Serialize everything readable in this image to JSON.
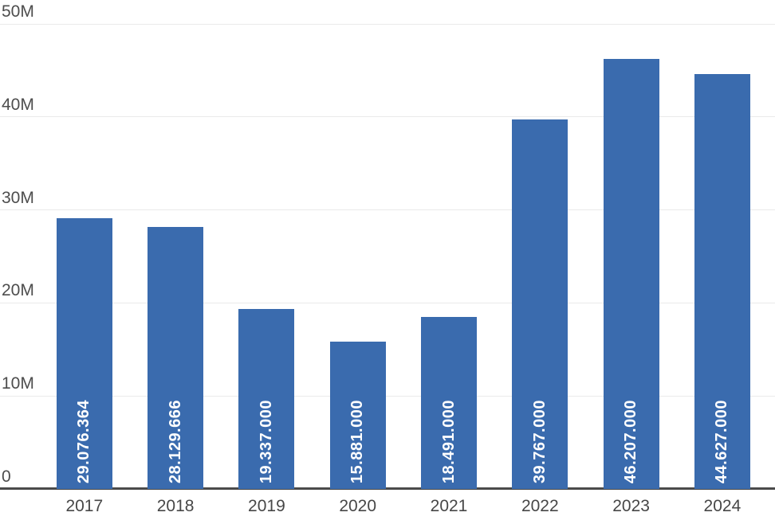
{
  "chart_data": {
    "type": "bar",
    "categories": [
      "2017",
      "2018",
      "2019",
      "2020",
      "2021",
      "2022",
      "2023",
      "2024"
    ],
    "values": [
      29076364,
      28129666,
      19337000,
      15881000,
      18491000,
      39767000,
      46207000,
      44627000
    ],
    "value_labels": [
      "29.076.364",
      "28.129.666",
      "19.337.000",
      "15.881.000",
      "18.491.000",
      "39.767.000",
      "46.207.000",
      "44.627.000"
    ],
    "ylim": [
      0,
      50000000
    ],
    "yticks": [
      {
        "value": 0,
        "label": "0"
      },
      {
        "value": 10000000,
        "label": "10M"
      },
      {
        "value": 20000000,
        "label": "20M"
      },
      {
        "value": 30000000,
        "label": "30M"
      },
      {
        "value": 40000000,
        "label": "40M"
      },
      {
        "value": 50000000,
        "label": "50M"
      }
    ],
    "grid": "horizontal-on",
    "legend": "none",
    "bar_label_position": "inside-bottom-rotated",
    "colors": {
      "bar": "#3a6bae",
      "bar_label_text": "#ffffff",
      "gridline": "#eaeaea",
      "axis_line": "#4a4a4a",
      "tick_text": "#4d4d4d",
      "background": "#ffffff"
    }
  }
}
